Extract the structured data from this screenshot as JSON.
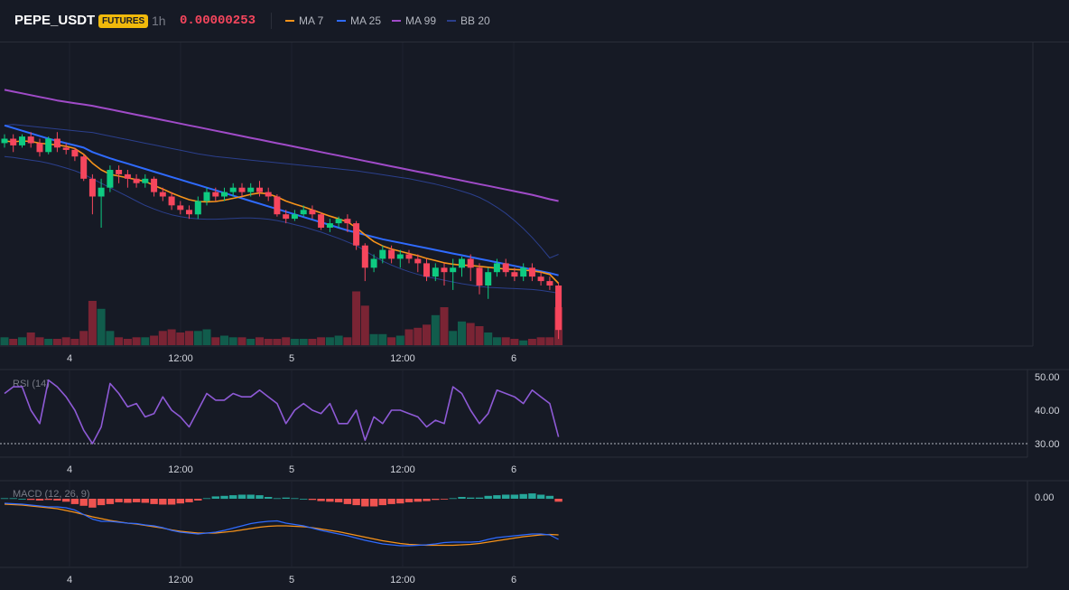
{
  "header": {
    "symbol": "PEPE_USDT",
    "badge": "FUTURES",
    "timeframe": "1h",
    "price": "0.00000253",
    "legend": [
      {
        "name": "MA 7",
        "color": "#f7931a"
      },
      {
        "name": "MA 25",
        "color": "#2f6bff"
      },
      {
        "name": "MA 99",
        "color": "#a04bc8"
      },
      {
        "name": "BB 20",
        "color": "#2b3f8c"
      }
    ]
  },
  "colors": {
    "up": "#0ecb81",
    "down": "#f6465d",
    "up_vol": "#115c4c",
    "down_vol": "#7a2434",
    "rsi": "#8e5ad6",
    "macd": "#2f6bff",
    "signal": "#f7931a"
  },
  "chart_data": [
    {
      "type": "candlestick",
      "title": "PEPE_USDT",
      "x_ticks": [
        "4",
        "12:00",
        "5",
        "12:00",
        "6"
      ],
      "candles": [
        [
          105.0,
          106.0,
          107.0,
          104.0
        ],
        [
          106.0,
          104.5,
          107.0,
          103.0
        ],
        [
          104.5,
          106.5,
          107.0,
          104.0
        ],
        [
          106.5,
          105.0,
          107.5,
          104.0
        ],
        [
          105.0,
          103.0,
          106.0,
          102.0
        ],
        [
          103.0,
          106.0,
          106.5,
          102.5
        ],
        [
          106.0,
          104.0,
          107.5,
          103.0
        ],
        [
          104.0,
          103.5,
          105.0,
          102.5
        ],
        [
          103.5,
          102.0,
          104.0,
          101.0
        ],
        [
          102.0,
          97.0,
          102.5,
          96.5
        ],
        [
          97.0,
          93.0,
          98.0,
          89.0
        ],
        [
          93.0,
          95.0,
          97.0,
          86.0
        ],
        [
          95.0,
          99.0,
          100.0,
          94.0
        ],
        [
          99.0,
          98.0,
          100.0,
          96.0
        ],
        [
          98.0,
          97.0,
          99.0,
          95.0
        ],
        [
          97.0,
          96.0,
          98.0,
          95.0
        ],
        [
          96.0,
          97.0,
          98.0,
          95.0
        ],
        [
          97.0,
          94.0,
          97.5,
          93.0
        ],
        [
          94.0,
          93.0,
          95.0,
          92.0
        ],
        [
          93.0,
          91.0,
          94.0,
          90.0
        ],
        [
          91.0,
          90.0,
          92.0,
          89.0
        ],
        [
          90.0,
          89.0,
          91.0,
          88.0
        ],
        [
          89.0,
          92.0,
          93.0,
          88.0
        ],
        [
          92.0,
          94.0,
          95.0,
          91.0
        ],
        [
          94.0,
          93.0,
          95.0,
          92.0
        ],
        [
          93.0,
          94.0,
          95.0,
          92.0
        ],
        [
          94.0,
          95.0,
          96.0,
          93.0
        ],
        [
          95.0,
          94.0,
          96.0,
          93.0
        ],
        [
          94.0,
          95.0,
          96.0,
          93.0
        ],
        [
          95.0,
          94.0,
          96.5,
          93.0
        ],
        [
          94.0,
          93.0,
          95.0,
          92.0
        ],
        [
          93.0,
          89.0,
          93.5,
          88.5
        ],
        [
          89.0,
          88.0,
          90.0,
          87.0
        ],
        [
          88.0,
          89.0,
          90.0,
          87.5
        ],
        [
          89.0,
          90.0,
          91.0,
          88.5
        ],
        [
          90.0,
          89.0,
          91.0,
          88.0
        ],
        [
          89.0,
          86.0,
          89.5,
          85.5
        ],
        [
          86.0,
          87.0,
          88.0,
          85.0
        ],
        [
          87.0,
          88.0,
          88.5,
          86.0
        ],
        [
          88.0,
          87.0,
          89.0,
          85.0
        ],
        [
          87.0,
          82.0,
          87.5,
          81.0
        ],
        [
          82.0,
          77.0,
          82.5,
          74.0
        ],
        [
          77.0,
          79.0,
          80.0,
          76.0
        ],
        [
          79.0,
          81.0,
          82.0,
          78.0
        ],
        [
          81.0,
          79.0,
          82.0,
          78.0
        ],
        [
          79.0,
          80.0,
          81.0,
          77.0
        ],
        [
          80.0,
          79.0,
          81.0,
          78.0
        ],
        [
          79.0,
          78.0,
          80.0,
          76.0
        ],
        [
          78.0,
          75.0,
          79.0,
          74.0
        ],
        [
          75.0,
          77.0,
          78.0,
          74.0
        ],
        [
          77.0,
          76.0,
          78.0,
          73.0
        ],
        [
          76.0,
          77.0,
          79.0,
          72.0
        ],
        [
          77.0,
          79.0,
          79.5,
          75.0
        ],
        [
          79.0,
          77.0,
          80.0,
          74.0
        ],
        [
          77.0,
          73.0,
          78.0,
          71.0
        ],
        [
          73.0,
          76.0,
          77.0,
          70.0
        ],
        [
          76.0,
          78.0,
          79.0,
          75.0
        ],
        [
          78.0,
          76.0,
          79.0,
          75.0
        ],
        [
          76.0,
          75.0,
          77.0,
          74.0
        ],
        [
          75.0,
          77.0,
          78.0,
          74.0
        ],
        [
          77.0,
          75.0,
          78.0,
          74.0
        ],
        [
          75.0,
          74.0,
          76.0,
          73.0
        ],
        [
          74.0,
          73.0,
          75.0,
          72.0
        ],
        [
          73.0,
          63.0,
          73.5,
          61.0
        ]
      ],
      "volumes": [
        5,
        4,
        5,
        8,
        5,
        4,
        4,
        5,
        4,
        9,
        28,
        23,
        9,
        5,
        4,
        5,
        5,
        6,
        9,
        10,
        8,
        9,
        9,
        10,
        5,
        6,
        5,
        5,
        4,
        5,
        4,
        4,
        5,
        4,
        4,
        4,
        5,
        5,
        6,
        5,
        34,
        25,
        7,
        7,
        5,
        6,
        10,
        11,
        13,
        19,
        24,
        9,
        15,
        14,
        12,
        8,
        5,
        5,
        4,
        3,
        4,
        5,
        5,
        24
      ],
      "ma99": [
        117.0,
        116.6,
        116.2,
        115.8,
        115.4,
        115.0,
        114.6,
        114.3,
        114.0,
        113.7,
        113.4,
        113.0,
        112.6,
        112.2,
        111.8,
        111.4,
        111.0,
        110.6,
        110.2,
        109.8,
        109.4,
        109.0,
        108.6,
        108.2,
        107.8,
        107.4,
        107.0,
        106.6,
        106.2,
        105.8,
        105.4,
        105.0,
        104.6,
        104.2,
        103.8,
        103.4,
        103.0,
        102.6,
        102.2,
        101.8,
        101.4,
        101.0,
        100.6,
        100.2,
        99.8,
        99.4,
        99.0,
        98.6,
        98.2,
        97.8,
        97.4,
        97.0,
        96.6,
        96.2,
        95.8,
        95.4,
        95.0,
        94.6,
        94.2,
        93.8,
        93.4,
        92.9,
        92.4,
        92.0
      ],
      "ma25": [
        109.0,
        108.4,
        107.8,
        107.2,
        106.6,
        106.0,
        105.5,
        105.0,
        104.5,
        104.0,
        103.0,
        102.3,
        101.6,
        101.0,
        100.4,
        99.8,
        99.2,
        98.6,
        98.0,
        97.4,
        96.8,
        96.2,
        95.6,
        95.0,
        94.4,
        93.8,
        93.2,
        92.6,
        92.0,
        91.4,
        90.8,
        90.2,
        89.6,
        89.0,
        88.4,
        87.8,
        87.2,
        86.6,
        86.0,
        85.4,
        84.9,
        84.4,
        83.9,
        83.4,
        83.0,
        82.6,
        82.2,
        81.8,
        81.4,
        81.0,
        80.6,
        80.2,
        79.8,
        79.4,
        79.0,
        78.6,
        78.2,
        77.8,
        77.4,
        77.0,
        76.6,
        76.2,
        75.8,
        75.3
      ],
      "ma7": [
        105.5,
        105.3,
        105.5,
        105.4,
        105.0,
        104.8,
        104.6,
        104.3,
        103.8,
        102.5,
        100.5,
        99.0,
        98.0,
        97.6,
        97.2,
        96.8,
        96.4,
        95.5,
        94.7,
        93.8,
        93.0,
        92.3,
        91.9,
        91.8,
        91.9,
        92.2,
        92.6,
        93.0,
        93.5,
        93.8,
        93.6,
        92.9,
        92.0,
        91.3,
        90.7,
        90.0,
        89.3,
        88.6,
        88.0,
        87.3,
        86.0,
        84.4,
        82.9,
        81.9,
        81.2,
        80.7,
        80.2,
        79.7,
        79.1,
        78.6,
        78.1,
        77.8,
        77.6,
        77.5,
        77.3,
        77.1,
        76.9,
        76.7,
        76.6,
        76.5,
        76.3,
        76.0,
        75.5,
        73.5
      ],
      "bb_upper": [
        109.0,
        109.2,
        109.0,
        108.8,
        108.6,
        108.4,
        108.2,
        108.0,
        107.8,
        107.6,
        107.4,
        107.0,
        106.6,
        106.2,
        105.8,
        105.4,
        105.0,
        104.6,
        104.2,
        103.8,
        103.4,
        103.0,
        102.6,
        102.3,
        102.0,
        101.8,
        101.6,
        101.4,
        101.2,
        101.0,
        100.8,
        100.6,
        100.4,
        100.2,
        100.0,
        99.8,
        99.6,
        99.4,
        99.2,
        99.0,
        98.8,
        98.5,
        98.2,
        97.9,
        97.6,
        97.3,
        97.0,
        96.6,
        96.2,
        95.8,
        95.3,
        94.8,
        94.2,
        93.6,
        92.8,
        91.8,
        90.6,
        89.2,
        87.6,
        85.8,
        83.8,
        81.6,
        79.2,
        80.0
      ],
      "bb_lower": [
        102.0,
        101.8,
        101.5,
        101.2,
        100.9,
        100.5,
        100.0,
        99.4,
        98.8,
        98.0,
        97.0,
        96.0,
        95.0,
        94.0,
        93.0,
        92.0,
        91.0,
        90.2,
        89.5,
        88.9,
        88.5,
        88.2,
        88.0,
        87.9,
        87.9,
        88.0,
        88.1,
        88.2,
        88.2,
        88.1,
        87.9,
        87.6,
        87.2,
        86.7,
        86.2,
        85.6,
        85.0,
        84.3,
        83.6,
        82.8,
        82.0,
        80.8,
        79.6,
        78.5,
        77.6,
        76.8,
        76.1,
        75.5,
        75.0,
        74.6,
        74.2,
        73.8,
        73.4,
        73.1,
        72.8,
        72.6,
        72.5,
        72.4,
        72.3,
        72.2,
        72.1,
        71.9,
        71.6,
        71.3
      ]
    },
    {
      "type": "line",
      "title": "RSI (14)",
      "x_ticks": [
        "4",
        "12:00",
        "5",
        "12:00",
        "6"
      ],
      "y_ticks": [
        "50.00",
        "40.00",
        "30.00"
      ],
      "ylim": [
        30,
        50
      ],
      "reference_line": 30,
      "values": [
        45,
        47,
        47,
        40,
        36,
        49,
        47,
        44,
        40,
        34,
        30,
        35,
        48,
        45,
        41,
        42,
        38,
        39,
        44,
        40,
        38,
        35,
        40,
        45,
        43,
        43,
        45,
        44,
        44,
        46,
        44,
        42,
        36,
        40,
        42,
        40,
        39,
        42,
        36,
        36,
        40,
        31,
        38,
        36,
        40,
        40,
        39,
        38,
        35,
        37,
        36,
        47,
        45,
        40,
        36,
        39,
        46,
        45,
        44,
        42,
        46,
        44,
        42,
        32
      ]
    },
    {
      "type": "bar",
      "title": "MACD (12, 26, 9)",
      "x_ticks": [
        "4",
        "12:00",
        "5",
        "12:00",
        "6"
      ],
      "y_ticks": [
        "0.00"
      ],
      "histogram": [
        0.1,
        0.1,
        0.0,
        -0.2,
        -0.3,
        -0.2,
        -0.3,
        -0.5,
        -0.9,
        -1.2,
        -1.5,
        -1.1,
        -0.9,
        -0.6,
        -0.7,
        -0.6,
        -0.7,
        -0.9,
        -1.0,
        -1.0,
        -0.8,
        -0.6,
        -0.3,
        0.1,
        0.4,
        0.5,
        0.6,
        0.7,
        0.7,
        0.6,
        0.3,
        0.1,
        0.2,
        0.1,
        0.0,
        -0.2,
        -0.4,
        -0.5,
        -0.6,
        -0.9,
        -1.1,
        -1.3,
        -1.3,
        -1.1,
        -0.9,
        -0.8,
        -0.6,
        -0.5,
        -0.4,
        -0.2,
        -0.1,
        0.1,
        0.3,
        0.2,
        0.2,
        0.5,
        0.6,
        0.7,
        0.7,
        0.8,
        0.9,
        0.7,
        0.5,
        -0.5
      ],
      "macd": [
        -1.0,
        -1.1,
        -1.2,
        -1.4,
        -1.6,
        -1.8,
        -1.8,
        -2.0,
        -2.5,
        -3.5,
        -4.5,
        -5.0,
        -5.0,
        -5.2,
        -5.4,
        -5.5,
        -5.8,
        -6.0,
        -6.4,
        -7.0,
        -7.4,
        -7.6,
        -7.8,
        -7.6,
        -7.4,
        -7.0,
        -6.5,
        -6.0,
        -5.5,
        -5.2,
        -5.0,
        -4.9,
        -5.4,
        -5.7,
        -6.0,
        -6.5,
        -7.0,
        -7.4,
        -7.8,
        -8.2,
        -8.7,
        -9.2,
        -9.6,
        -10.0,
        -10.2,
        -10.4,
        -10.4,
        -10.3,
        -10.2,
        -10.0,
        -9.7,
        -9.6,
        -9.6,
        -9.6,
        -9.5,
        -9.0,
        -8.6,
        -8.4,
        -8.2,
        -8.0,
        -7.8,
        -7.8,
        -8.0,
        -9.0
      ],
      "signal": [
        -1.2,
        -1.3,
        -1.4,
        -1.6,
        -1.8,
        -2.0,
        -2.2,
        -2.6,
        -3.0,
        -3.5,
        -4.0,
        -4.4,
        -4.8,
        -5.1,
        -5.4,
        -5.6,
        -5.9,
        -6.2,
        -6.5,
        -6.9,
        -7.2,
        -7.4,
        -7.6,
        -7.6,
        -7.6,
        -7.4,
        -7.2,
        -6.9,
        -6.6,
        -6.3,
        -6.1,
        -6.0,
        -6.0,
        -6.1,
        -6.2,
        -6.4,
        -6.7,
        -7.0,
        -7.3,
        -7.7,
        -8.1,
        -8.5,
        -8.9,
        -9.3,
        -9.6,
        -9.9,
        -10.1,
        -10.2,
        -10.3,
        -10.3,
        -10.3,
        -10.3,
        -10.2,
        -10.1,
        -9.9,
        -9.6,
        -9.3,
        -9.0,
        -8.7,
        -8.4,
        -8.2,
        -8.0,
        -7.9,
        -8.0
      ]
    }
  ]
}
